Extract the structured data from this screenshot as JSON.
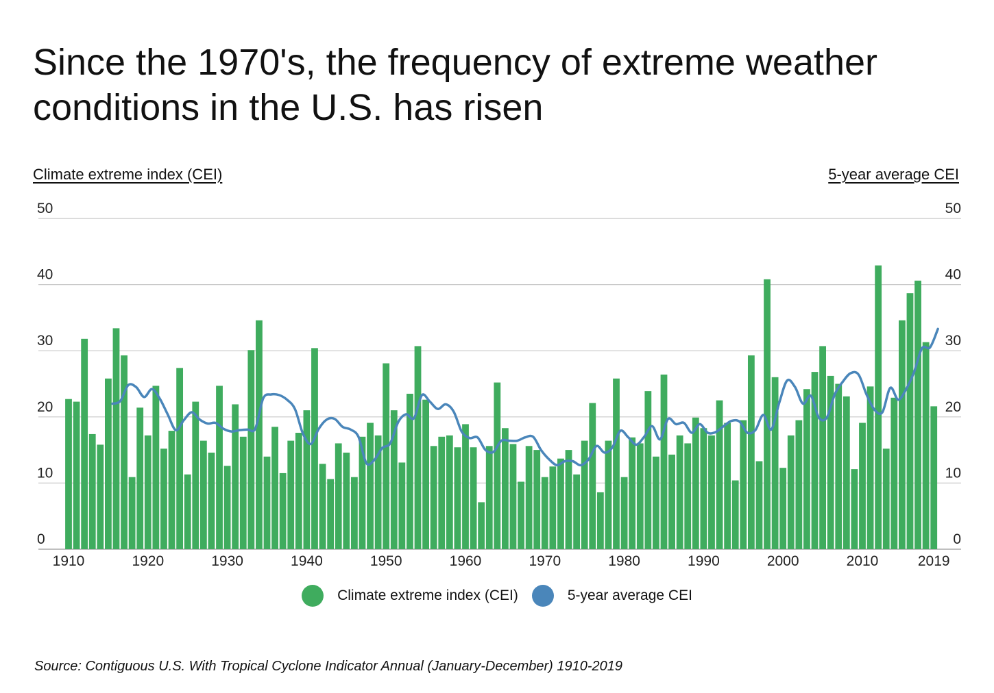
{
  "title": "Since the 1970's, the frequency of extreme weather conditions in the U.S. has risen",
  "source": "Source: Contiguous U.S. With Tropical Cyclone Indicator Annual (January-December) 1910-2019",
  "colors": {
    "bars": "#3fac5e",
    "line": "#4a86ba",
    "grid": "#c8c8c8"
  },
  "chart_data": {
    "type": "bar",
    "title": "Since the 1970's, the frequency of extreme weather conditions in the U.S. has risen",
    "ylabel": "Climate extreme index (CEI)",
    "ylabel_right": "5-year average CEI",
    "ylim": [
      0,
      50
    ],
    "yticks": [
      0,
      10,
      20,
      30,
      40,
      50
    ],
    "xticks": [
      "1910",
      "1920",
      "1930",
      "1940",
      "1950",
      "1960",
      "1970",
      "1980",
      "1990",
      "2000",
      "2010",
      "2019"
    ],
    "grid": true,
    "legend_position": "bottom",
    "x": [
      1910,
      1911,
      1912,
      1913,
      1914,
      1915,
      1916,
      1917,
      1918,
      1919,
      1920,
      1921,
      1922,
      1923,
      1924,
      1925,
      1926,
      1927,
      1928,
      1929,
      1930,
      1931,
      1932,
      1933,
      1934,
      1935,
      1936,
      1937,
      1938,
      1939,
      1940,
      1941,
      1942,
      1943,
      1944,
      1945,
      1946,
      1947,
      1948,
      1949,
      1950,
      1951,
      1952,
      1953,
      1954,
      1955,
      1956,
      1957,
      1958,
      1959,
      1960,
      1961,
      1962,
      1963,
      1964,
      1965,
      1966,
      1967,
      1968,
      1969,
      1970,
      1971,
      1972,
      1973,
      1974,
      1975,
      1976,
      1977,
      1978,
      1979,
      1980,
      1981,
      1982,
      1983,
      1984,
      1985,
      1986,
      1987,
      1988,
      1989,
      1990,
      1991,
      1992,
      1993,
      1994,
      1995,
      1996,
      1997,
      1998,
      1999,
      2000,
      2001,
      2002,
      2003,
      2004,
      2005,
      2006,
      2007,
      2008,
      2009,
      2010,
      2011,
      2012,
      2013,
      2014,
      2015,
      2016,
      2017,
      2018,
      2019
    ],
    "series": [
      {
        "name": "Climate extreme index (CEI)",
        "type": "bar",
        "values": [
          22.7,
          22.3,
          31.8,
          17.4,
          15.8,
          25.8,
          33.4,
          29.3,
          10.9,
          21.4,
          17.2,
          24.7,
          15.2,
          17.9,
          27.4,
          11.3,
          22.3,
          16.4,
          14.6,
          24.7,
          12.6,
          21.9,
          17.0,
          30.1,
          34.6,
          14.0,
          18.5,
          11.5,
          16.4,
          17.6,
          21.0,
          30.4,
          12.9,
          10.6,
          16.0,
          14.6,
          10.9,
          17.0,
          19.1,
          17.2,
          28.1,
          21.0,
          13.1,
          23.5,
          30.7,
          22.6,
          15.6,
          17.0,
          17.2,
          15.4,
          18.9,
          15.4,
          7.1,
          15.6,
          25.2,
          18.3,
          15.9,
          10.2,
          15.6,
          15.0,
          10.9,
          12.5,
          13.7,
          15.0,
          11.3,
          16.4,
          22.1,
          8.6,
          16.4,
          25.8,
          10.9,
          16.9,
          16.0,
          23.9,
          14.0,
          26.4,
          14.3,
          17.2,
          16.0,
          19.9,
          18.3,
          17.2,
          22.5,
          19.1,
          10.4,
          19.5,
          29.3,
          13.3,
          40.8,
          26.0,
          12.3,
          17.2,
          19.5,
          24.2,
          26.8,
          30.7,
          26.2,
          25.0,
          23.1,
          12.1,
          19.1,
          24.6,
          42.9,
          15.2,
          22.9,
          34.6,
          38.7,
          40.6,
          31.3,
          21.6
        ]
      },
      {
        "name": "5-year average CEI",
        "type": "line",
        "axis": "right",
        "x": [
          1915,
          1916,
          1917,
          1918,
          1919,
          1920,
          1921,
          1922,
          1923,
          1924,
          1925,
          1926,
          1927,
          1928,
          1929,
          1930,
          1931,
          1932,
          1933,
          1934,
          1935,
          1936,
          1937,
          1938,
          1939,
          1940,
          1941,
          1942,
          1943,
          1944,
          1945,
          1946,
          1947,
          1948,
          1949,
          1950,
          1951,
          1952,
          1953,
          1954,
          1955,
          1956,
          1957,
          1958,
          1959,
          1960,
          1961,
          1962,
          1963,
          1964,
          1965,
          1966,
          1967,
          1968,
          1969,
          1970,
          1971,
          1972,
          1973,
          1974,
          1975,
          1976,
          1977,
          1978,
          1979,
          1980,
          1981,
          1982,
          1983,
          1984,
          1985,
          1986,
          1987,
          1988,
          1989,
          1990,
          1991,
          1992,
          1993,
          1994,
          1995,
          1996,
          1997,
          1998,
          1999,
          2000,
          2001,
          2002,
          2003,
          2004,
          2005,
          2006,
          2007,
          2008,
          2009,
          2010,
          2011,
          2012,
          2013,
          2014,
          2015,
          2016,
          2017,
          2018,
          2019
        ],
        "values": [
          22.0,
          22.4,
          24.8,
          24.5,
          23.0,
          24.2,
          22.7,
          20.3,
          18.0,
          19.5,
          20.7,
          19.6,
          19.0,
          19.1,
          18.2,
          17.8,
          18.0,
          18.1,
          18.2,
          22.8,
          23.4,
          23.3,
          22.6,
          21.2,
          17.5,
          15.9,
          18.2,
          19.6,
          19.7,
          18.5,
          18.1,
          17.0,
          13.0,
          13.5,
          15.3,
          16.0,
          19.2,
          20.4,
          19.8,
          23.3,
          22.3,
          21.2,
          21.9,
          20.8,
          17.8,
          16.8,
          16.9,
          15.0,
          14.7,
          16.4,
          16.4,
          16.4,
          16.9,
          17.0,
          15.0,
          13.6,
          12.7,
          13.3,
          13.3,
          12.7,
          13.6,
          15.6,
          14.6,
          15.4,
          17.9,
          16.9,
          15.8,
          17.0,
          18.6,
          16.6,
          19.7,
          18.9,
          19.1,
          17.6,
          18.9,
          17.6,
          17.7,
          18.6,
          19.4,
          19.3,
          17.6,
          18.0,
          20.3,
          18.1,
          22.1,
          25.5,
          24.5,
          22.0,
          23.2,
          19.9,
          19.9,
          23.4,
          25.3,
          26.6,
          26.4,
          23.4,
          21.1,
          20.7,
          24.4,
          22.6,
          24.2,
          26.8,
          30.4,
          30.5,
          33.3
        ]
      }
    ]
  }
}
